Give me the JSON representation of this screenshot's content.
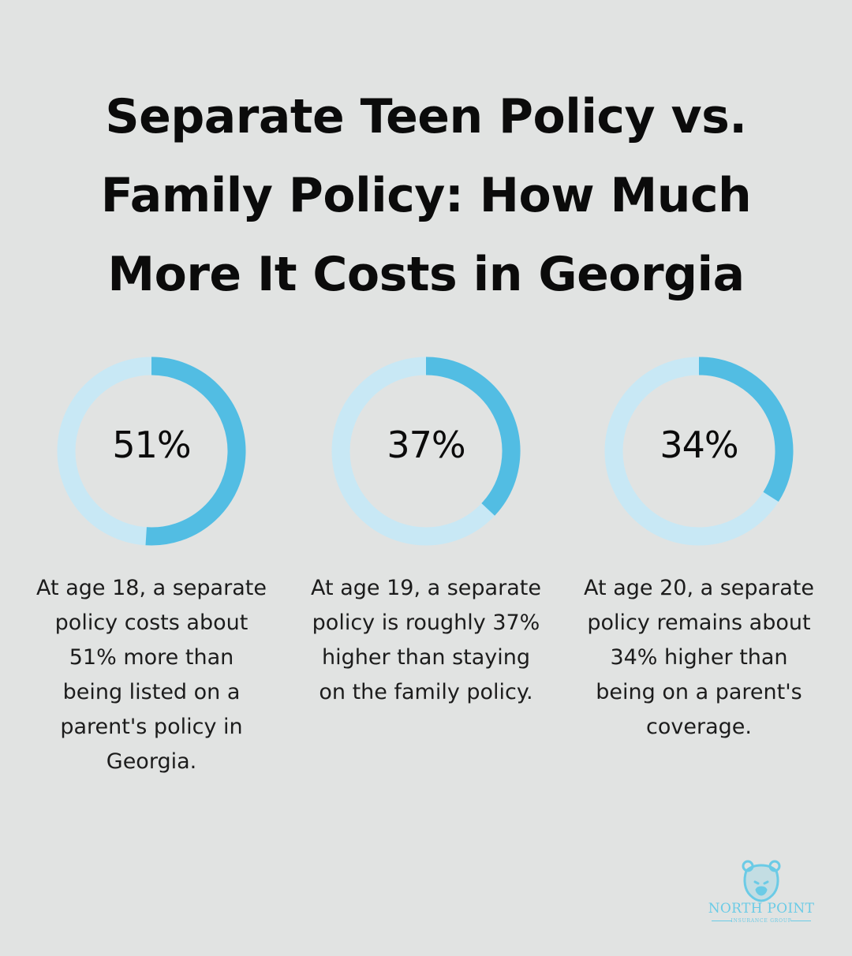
{
  "title_lines": [
    "Separate Teen Policy vs.",
    "Family Policy: How Much",
    "More It Costs in Georgia"
  ],
  "colors": {
    "background": "#e1e3e2",
    "ring_fill": "#52bde3",
    "ring_track": "#c8e8f5",
    "text": "#0b0b0b",
    "logo": "#6bcbe6"
  },
  "chart_data": {
    "type": "donut",
    "series": [
      {
        "value": 51,
        "label": "51%",
        "description_lines": [
          "At age 18, a separate",
          "policy costs about",
          "51% more than",
          "being listed on a",
          "parent's policy in",
          "Georgia."
        ]
      },
      {
        "value": 37,
        "label": "37%",
        "description_lines": [
          "At age 19, a separate",
          "policy is roughly 37%",
          "higher than staying",
          "on the family policy."
        ]
      },
      {
        "value": 34,
        "label": "34%",
        "description_lines": [
          "At age 20, a separate",
          "policy remains about",
          "34% higher than",
          "being on a parent's",
          "coverage."
        ]
      }
    ],
    "max": 100
  },
  "logo": {
    "icon": "bear-icon",
    "name": "NORTH POINT",
    "subtitle": "INSURANCE GROUP"
  }
}
